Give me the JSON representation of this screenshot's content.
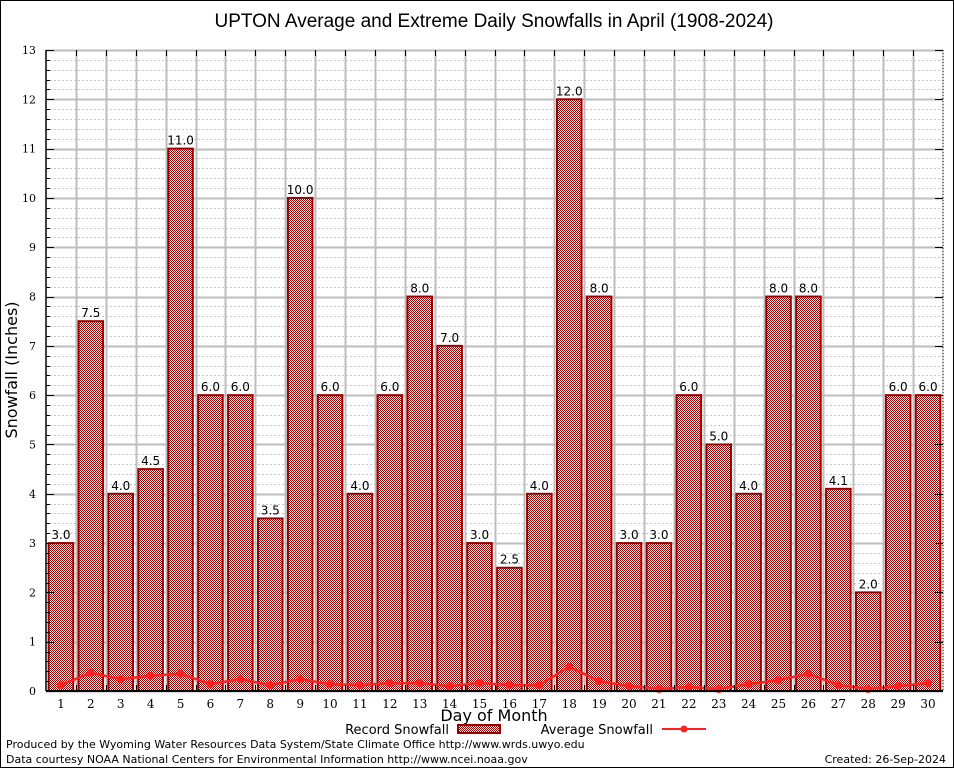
{
  "chart_data": {
    "type": "bar",
    "title": "UPTON Average and Extreme Daily Snowfalls in April (1908-2024)",
    "xlabel": "Day of Month",
    "ylabel": "Snowfall (Inches)",
    "ylim": [
      0,
      13
    ],
    "yticks": [
      0,
      1,
      2,
      3,
      4,
      5,
      6,
      7,
      8,
      9,
      10,
      11,
      12,
      13
    ],
    "grid": true,
    "categories": [
      "1",
      "2",
      "3",
      "4",
      "5",
      "6",
      "7",
      "8",
      "9",
      "10",
      "11",
      "12",
      "13",
      "14",
      "15",
      "16",
      "17",
      "18",
      "19",
      "20",
      "21",
      "22",
      "23",
      "24",
      "25",
      "26",
      "27",
      "28",
      "29",
      "30"
    ],
    "series": [
      {
        "name": "Record Snowfall",
        "type": "bar",
        "color": "#9b0000",
        "values": [
          3.0,
          7.5,
          4.0,
          4.5,
          11.0,
          6.0,
          6.0,
          3.5,
          10.0,
          6.0,
          4.0,
          6.0,
          8.0,
          7.0,
          3.0,
          2.5,
          4.0,
          12.0,
          8.0,
          3.0,
          3.0,
          6.0,
          5.0,
          4.0,
          8.0,
          8.0,
          4.1,
          2.0,
          6.0,
          6.0
        ],
        "labels": [
          "3.0",
          "7.5",
          "4.0",
          "4.5",
          "11.0",
          "6.0",
          "6.0",
          "3.5",
          "10.0",
          "6.0",
          "4.0",
          "6.0",
          "8.0",
          "7.0",
          "3.0",
          "2.5",
          "4.0",
          "12.0",
          "8.0",
          "3.0",
          "3.0",
          "6.0",
          "5.0",
          "4.0",
          "8.0",
          "8.0",
          "4.1",
          "2.0",
          "6.0",
          "6.0"
        ]
      },
      {
        "name": "Average Snowfall",
        "type": "line",
        "color": "#ff2020",
        "values": [
          0.12,
          0.37,
          0.24,
          0.31,
          0.35,
          0.14,
          0.24,
          0.12,
          0.24,
          0.14,
          0.12,
          0.16,
          0.16,
          0.1,
          0.16,
          0.12,
          0.12,
          0.49,
          0.2,
          0.1,
          0.04,
          0.08,
          0.04,
          0.14,
          0.22,
          0.35,
          0.12,
          0.04,
          0.1,
          0.16
        ]
      }
    ],
    "legend": {
      "placement": "bottom-center",
      "entries": [
        "Record Snowfall",
        "Average Snowfall"
      ]
    }
  },
  "footer": {
    "line1": "Produced by the Wyoming Water Resources Data System/State Climate Office http://www.wrds.uwyo.edu",
    "line2": "Data courtesy NOAA National Centers for Environmental Information http://www.ncei.noaa.gov",
    "created": "Created: 26-Sep-2024"
  }
}
